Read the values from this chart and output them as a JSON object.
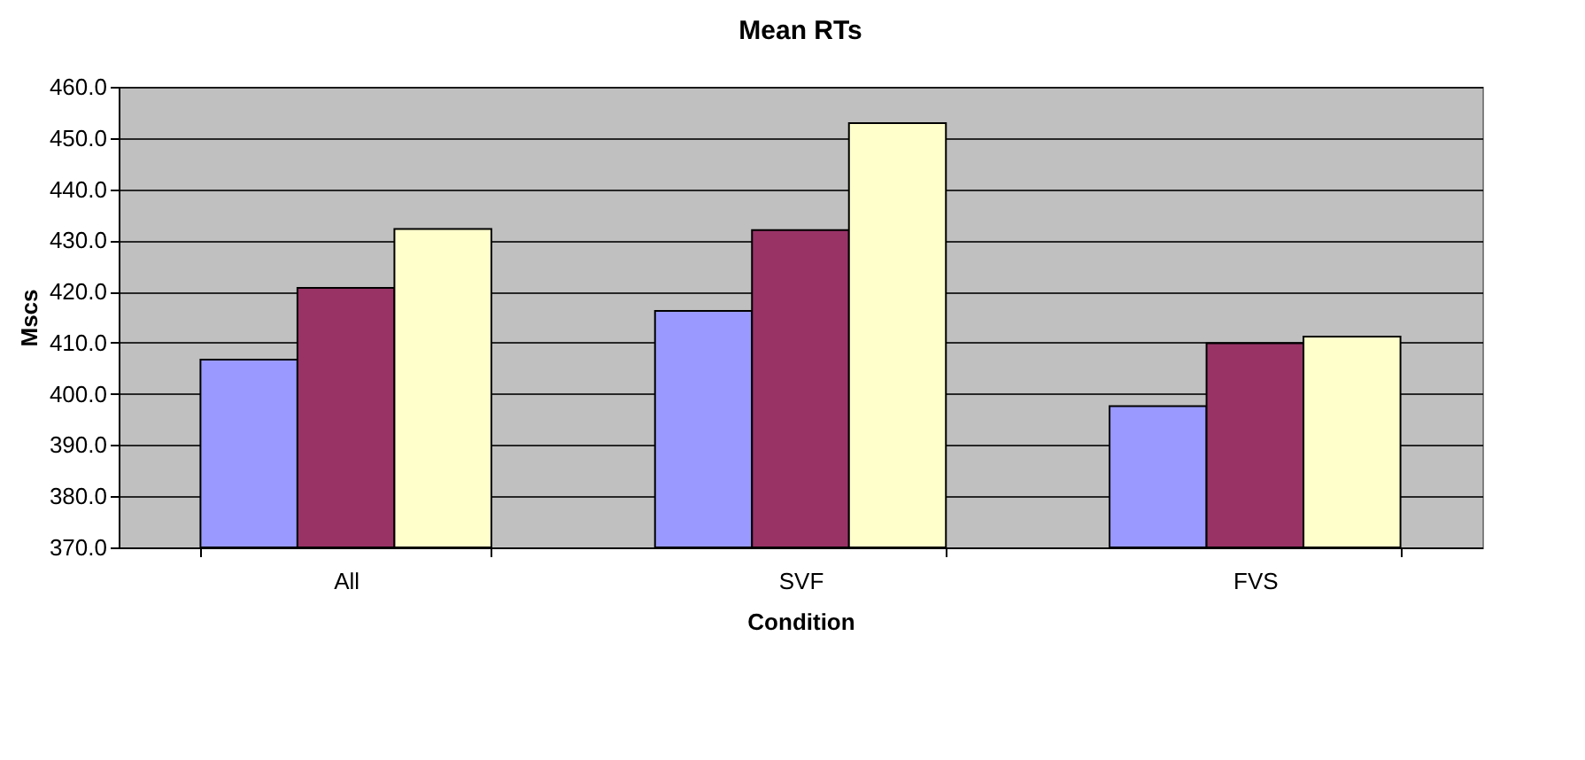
{
  "chart_data": {
    "type": "bar",
    "title": "Mean RTs",
    "xlabel": "Condition",
    "ylabel": "Mscs",
    "categories": [
      "All",
      "SVF",
      "FVS"
    ],
    "series": [
      {
        "color": "#9999ff",
        "values": [
          406.7,
          416.2,
          397.6
        ]
      },
      {
        "color": "#993366",
        "values": [
          420.7,
          432.0,
          409.9
        ]
      },
      {
        "color": "#ffffcc",
        "values": [
          432.2,
          452.9,
          411.2
        ]
      }
    ],
    "ylim": [
      370,
      460
    ],
    "yticks": [
      {
        "value": 370,
        "label": "370.0"
      },
      {
        "value": 380,
        "label": "380.0"
      },
      {
        "value": 390,
        "label": "390.0"
      },
      {
        "value": 400,
        "label": "400.0"
      },
      {
        "value": 410,
        "label": "410.0"
      },
      {
        "value": 420,
        "label": "420.0"
      },
      {
        "value": 430,
        "label": "430.0"
      },
      {
        "value": 440,
        "label": "440.0"
      },
      {
        "value": 450,
        "label": "450.0"
      },
      {
        "value": 460,
        "label": "460.0"
      }
    ],
    "grid": "y",
    "legend": false
  }
}
